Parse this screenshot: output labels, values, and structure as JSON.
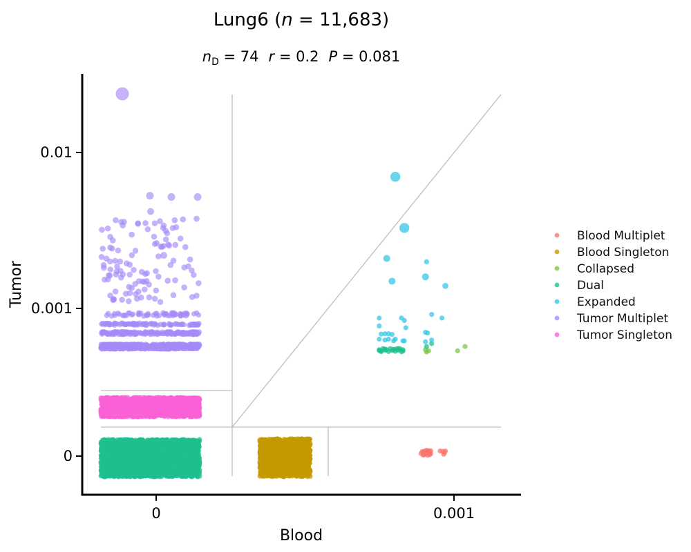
{
  "chart_data": {
    "type": "scatter",
    "title": "Lung6 (n = 11,683)",
    "title_parts": {
      "prefix": "Lung6 (",
      "n_symbol": "n",
      "rest": " = 11,683)"
    },
    "subtitle_parts": {
      "nd_symbol": "n",
      "nd_sub": "D",
      "nd_value": " = 74",
      "r_symbol": "r",
      "r_value": " = 0.2",
      "p_symbol": "P",
      "p_value": " = 0.081"
    },
    "xlabel": "Blood",
    "ylabel": "Tumor",
    "x_ticks": [
      {
        "value": 0,
        "label": "0"
      },
      {
        "value": 0.001,
        "label": "0.001"
      }
    ],
    "y_ticks": [
      {
        "value": 0,
        "label": "0"
      },
      {
        "value": 0.001,
        "label": "0.001"
      },
      {
        "value": 0.01,
        "label": "0.01"
      }
    ],
    "scale": "symlog",
    "legend_position": "right",
    "series": [
      {
        "name": "Blood Multiplet",
        "color": "#f8766d",
        "points": [
          [
            0.00068,
            2.2e-06
          ],
          [
            0.00069,
            3.4e-06
          ],
          [
            0.0007,
            2.7e-06
          ],
          [
            0.00071,
            3e-06
          ],
          [
            0.00072,
            2.4e-06
          ],
          [
            0.00073,
            3e-06
          ],
          [
            0.00067,
            2.8e-06
          ],
          [
            0.00066,
            2.5e-06
          ],
          [
            0.0007,
            2e-06
          ],
          [
            0.00069,
            1.9e-06
          ],
          [
            0.00071,
            1.6e-06
          ],
          [
            0.00068,
            1.2e-06
          ],
          [
            0.00067,
            9e-07
          ],
          [
            0.00066,
            5e-07
          ],
          [
            0.0007,
            4e-07
          ],
          [
            0.00072,
            8e-07
          ],
          [
            0.00073,
            1.2e-06
          ],
          [
            0.00071,
            1.9e-06
          ],
          [
            0.00065,
            2.5e-06
          ],
          [
            0.00064,
            1.4e-06
          ],
          [
            0.00067,
            1.9e-06
          ],
          [
            0.00069,
            2.4e-06
          ],
          [
            0.00083,
            2.9e-06
          ],
          [
            0.00086,
            2.7e-06
          ],
          [
            0.00089,
            2.9e-06
          ],
          [
            0.00088,
            1.9e-06
          ],
          [
            0.00087,
            1e-06
          ]
        ],
        "sizes": [
          1,
          1,
          1,
          1,
          1,
          1,
          1,
          1,
          1,
          1,
          1,
          1,
          1,
          1,
          1,
          1,
          1,
          1,
          1,
          1,
          1,
          1,
          1,
          1,
          1,
          1,
          1
        ]
      },
      {
        "name": "Blood Singleton",
        "color": "#c49a00",
        "cloud": true
      },
      {
        "name": "Collapsed",
        "color": "#7cc646",
        "points": [
          [
            0.00116,
            0.00035
          ],
          [
            0.00105,
            0.00031
          ],
          [
            0.00068,
            0.00032
          ],
          [
            0.00069,
            0.0003
          ],
          [
            0.00071,
            0.00031
          ]
        ],
        "sizes": [
          1,
          1,
          1,
          1,
          1
        ]
      },
      {
        "name": "Dual",
        "color": "#1fbf8f",
        "points": [
          [
            0.00036,
            0.00032
          ],
          [
            0.00038,
            0.00033
          ],
          [
            0.0004,
            0.00032
          ],
          [
            0.00042,
            0.00033
          ],
          [
            0.00044,
            0.00032
          ],
          [
            0.00046,
            0.00033
          ],
          [
            0.00048,
            0.00033
          ],
          [
            0.0005,
            0.00032
          ],
          [
            0.00037,
            0.00031
          ],
          [
            0.00039,
            0.000315
          ],
          [
            0.00043,
            0.000313
          ],
          [
            0.00047,
            0.000315
          ],
          [
            0.0005,
            0.000308
          ],
          [
            0.00036,
            0.000312
          ],
          [
            0.00041,
            0.000304
          ],
          [
            0.00045,
            0.000306
          ],
          [
            0.00049,
            0.000302
          ],
          [
            0.00037,
            0.000303
          ],
          [
            0.00069,
            0.00035
          ],
          [
            0.00074,
            0.00038
          ],
          [
            0.00039,
            0.000326
          ],
          [
            0.00047,
            0.000328
          ],
          [
            0.00044,
            0.000324
          ]
        ],
        "sizes": [
          1,
          1,
          1,
          1,
          1,
          1,
          1,
          1,
          1,
          1,
          1,
          1,
          1,
          1,
          1,
          1,
          1,
          1,
          1,
          1,
          1,
          1,
          1
        ]
      },
      {
        "name": "Expanded",
        "color": "#35c6e8",
        "points": [
          [
            0.00045,
            0.007
          ],
          [
            0.00051,
            0.0033
          ],
          [
            0.0004,
            0.0021
          ],
          [
            0.00043,
            0.0015
          ],
          [
            0.00068,
            0.0016
          ],
          [
            0.00069,
            0.002
          ],
          [
            0.00089,
            0.0014
          ],
          [
            0.00074,
            0.00085
          ],
          [
            0.00085,
            0.00077
          ],
          [
            0.00036,
            0.00077
          ],
          [
            0.00049,
            0.00077
          ],
          [
            0.00051,
            0.00072
          ],
          [
            0.00036,
            0.00062
          ],
          [
            0.00052,
            0.00059
          ],
          [
            0.00068,
            0.00052
          ],
          [
            0.0007,
            0.00051
          ],
          [
            0.00037,
            0.000495
          ],
          [
            0.00039,
            0.0005
          ],
          [
            0.00041,
            0.0005
          ],
          [
            0.00043,
            0.00049
          ],
          [
            0.00036,
            0.00043
          ],
          [
            0.00039,
            0.00042
          ],
          [
            0.00041,
            0.00043
          ],
          [
            0.00044,
            0.00041
          ],
          [
            0.0005,
            0.00041
          ],
          [
            0.00051,
            0.00041
          ],
          [
            0.00068,
            0.0004
          ],
          [
            0.00074,
            0.00042
          ],
          [
            0.00045,
            0.00043
          ]
        ],
        "sizes": [
          2,
          2,
          1.4,
          1.4,
          1.4,
          1,
          1.2,
          1,
          1,
          1,
          1,
          1,
          1,
          1,
          1,
          1,
          1,
          1,
          1,
          1,
          1,
          1,
          1,
          1,
          1,
          1,
          1,
          1,
          1
        ]
      },
      {
        "name": "Tumor Multiplet",
        "color": "#a58af8",
        "cloud": true
      },
      {
        "name": "Tumor Singleton",
        "color": "#fb61d7",
        "cloud": true
      }
    ]
  }
}
